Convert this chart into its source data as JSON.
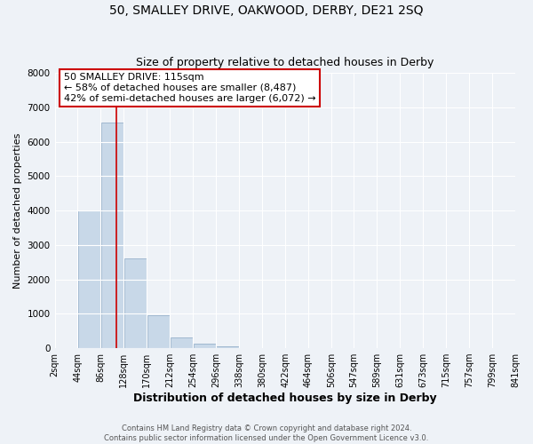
{
  "title": "50, SMALLEY DRIVE, OAKWOOD, DERBY, DE21 2SQ",
  "subtitle": "Size of property relative to detached houses in Derby",
  "xlabel": "Distribution of detached houses by size in Derby",
  "ylabel": "Number of detached properties",
  "bin_edges": [
    2,
    44,
    86,
    128,
    170,
    212,
    254,
    296,
    338,
    380,
    422,
    464,
    506,
    547,
    589,
    631,
    673,
    715,
    757,
    799,
    841
  ],
  "bin_heights": [
    0,
    4000,
    6550,
    2600,
    950,
    320,
    130,
    60,
    0,
    0,
    0,
    0,
    0,
    0,
    0,
    0,
    0,
    0,
    0,
    0
  ],
  "bar_color": "#c8d8e8",
  "bar_edge_color": "#a0b8d0",
  "vline_x": 115,
  "vline_color": "#cc0000",
  "annotation_line1": "50 SMALLEY DRIVE: 115sqm",
  "annotation_line2": "← 58% of detached houses are smaller (8,487)",
  "annotation_line3": "42% of semi-detached houses are larger (6,072) →",
  "annotation_box_color": "#ffffff",
  "annotation_box_edge_color": "#cc0000",
  "ylim": [
    0,
    8000
  ],
  "yticks": [
    0,
    1000,
    2000,
    3000,
    4000,
    5000,
    6000,
    7000,
    8000
  ],
  "tick_labels": [
    "2sqm",
    "44sqm",
    "86sqm",
    "128sqm",
    "170sqm",
    "212sqm",
    "254sqm",
    "296sqm",
    "338sqm",
    "380sqm",
    "422sqm",
    "464sqm",
    "506sqm",
    "547sqm",
    "589sqm",
    "631sqm",
    "673sqm",
    "715sqm",
    "757sqm",
    "799sqm",
    "841sqm"
  ],
  "footer_line1": "Contains HM Land Registry data © Crown copyright and database right 2024.",
  "footer_line2": "Contains public sector information licensed under the Open Government Licence v3.0.",
  "bg_color": "#eef2f7",
  "grid_color": "#ffffff",
  "title_fontsize": 10,
  "subtitle_fontsize": 9,
  "xlabel_fontsize": 9,
  "ylabel_fontsize": 8,
  "tick_fontsize": 7,
  "footer_fontsize": 6,
  "annot_fontsize": 8
}
